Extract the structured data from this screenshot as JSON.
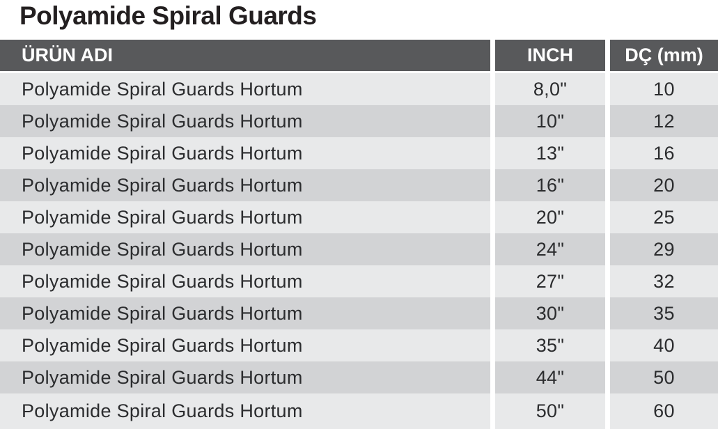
{
  "title": "Polyamide Spiral Guards",
  "table": {
    "columns": [
      {
        "label": "ÜRÜN ADI"
      },
      {
        "label": "INCH"
      },
      {
        "label": "DÇ (mm)"
      }
    ],
    "rows": [
      {
        "name": "Polyamide Spiral Guards Hortum",
        "inch": "8,0\"",
        "dc_mm": "10"
      },
      {
        "name": "Polyamide Spiral Guards Hortum",
        "inch": "10\"",
        "dc_mm": "12"
      },
      {
        "name": "Polyamide Spiral Guards Hortum",
        "inch": "13\"",
        "dc_mm": "16"
      },
      {
        "name": "Polyamide Spiral Guards Hortum",
        "inch": "16\"",
        "dc_mm": "20"
      },
      {
        "name": "Polyamide Spiral Guards Hortum",
        "inch": "20\"",
        "dc_mm": "25"
      },
      {
        "name": "Polyamide Spiral Guards Hortum",
        "inch": "24\"",
        "dc_mm": "29"
      },
      {
        "name": "Polyamide Spiral Guards Hortum",
        "inch": "27\"",
        "dc_mm": "32"
      },
      {
        "name": "Polyamide Spiral Guards Hortum",
        "inch": "30\"",
        "dc_mm": "35"
      },
      {
        "name": "Polyamide Spiral Guards Hortum",
        "inch": "35\"",
        "dc_mm": "40"
      },
      {
        "name": "Polyamide Spiral Guards Hortum",
        "inch": "44\"",
        "dc_mm": "50"
      },
      {
        "name": "Polyamide Spiral Guards Hortum",
        "inch": "50\"",
        "dc_mm": "60"
      }
    ]
  },
  "colors": {
    "page_bg": "#ffffff",
    "title_text": "#231f20",
    "header_bg": "#58595b",
    "header_text": "#ffffff",
    "row_light_bg": "#e8e9ea",
    "row_dark_bg": "#d2d3d5",
    "cell_text": "#2b2c2e"
  }
}
